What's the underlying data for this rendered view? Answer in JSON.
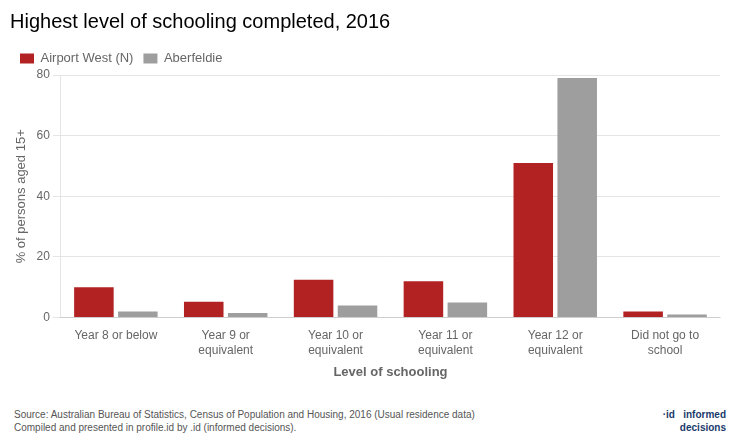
{
  "chart_data": {
    "type": "bar",
    "title": "Highest level of schooling completed, 2016",
    "categories": [
      "Year 8 or below",
      "Year 9 or\nequivalent",
      "Year 10 or\nequivalent",
      "Year 11 or\nequivalent",
      "Year 12 or\nequivalent",
      "Did not go to\nschool"
    ],
    "series": [
      {
        "name": "Airport West (N)",
        "color": "#b22222",
        "values": [
          10.0,
          5.2,
          12.5,
          12.0,
          51.0,
          2.0
        ]
      },
      {
        "name": "Aberfeldie",
        "color": "#9e9e9e",
        "values": [
          2.0,
          1.5,
          4.0,
          5.0,
          79.0,
          1.0
        ]
      }
    ],
    "ylabel": "% of persons aged 15+",
    "xlabel": "Level of schooling",
    "ylim": [
      0,
      80
    ],
    "yticks": [
      0,
      20,
      40,
      60,
      80
    ],
    "grid": true,
    "legend": "upper left",
    "annotations": [
      "Source: Australian Bureau of Statistics, Census of Population and Housing, 2016 (Usual residence data)\nCompiled and presented in profile.id by .id (informed decisions).",
      "·id   informed\n        decisions"
    ]
  }
}
